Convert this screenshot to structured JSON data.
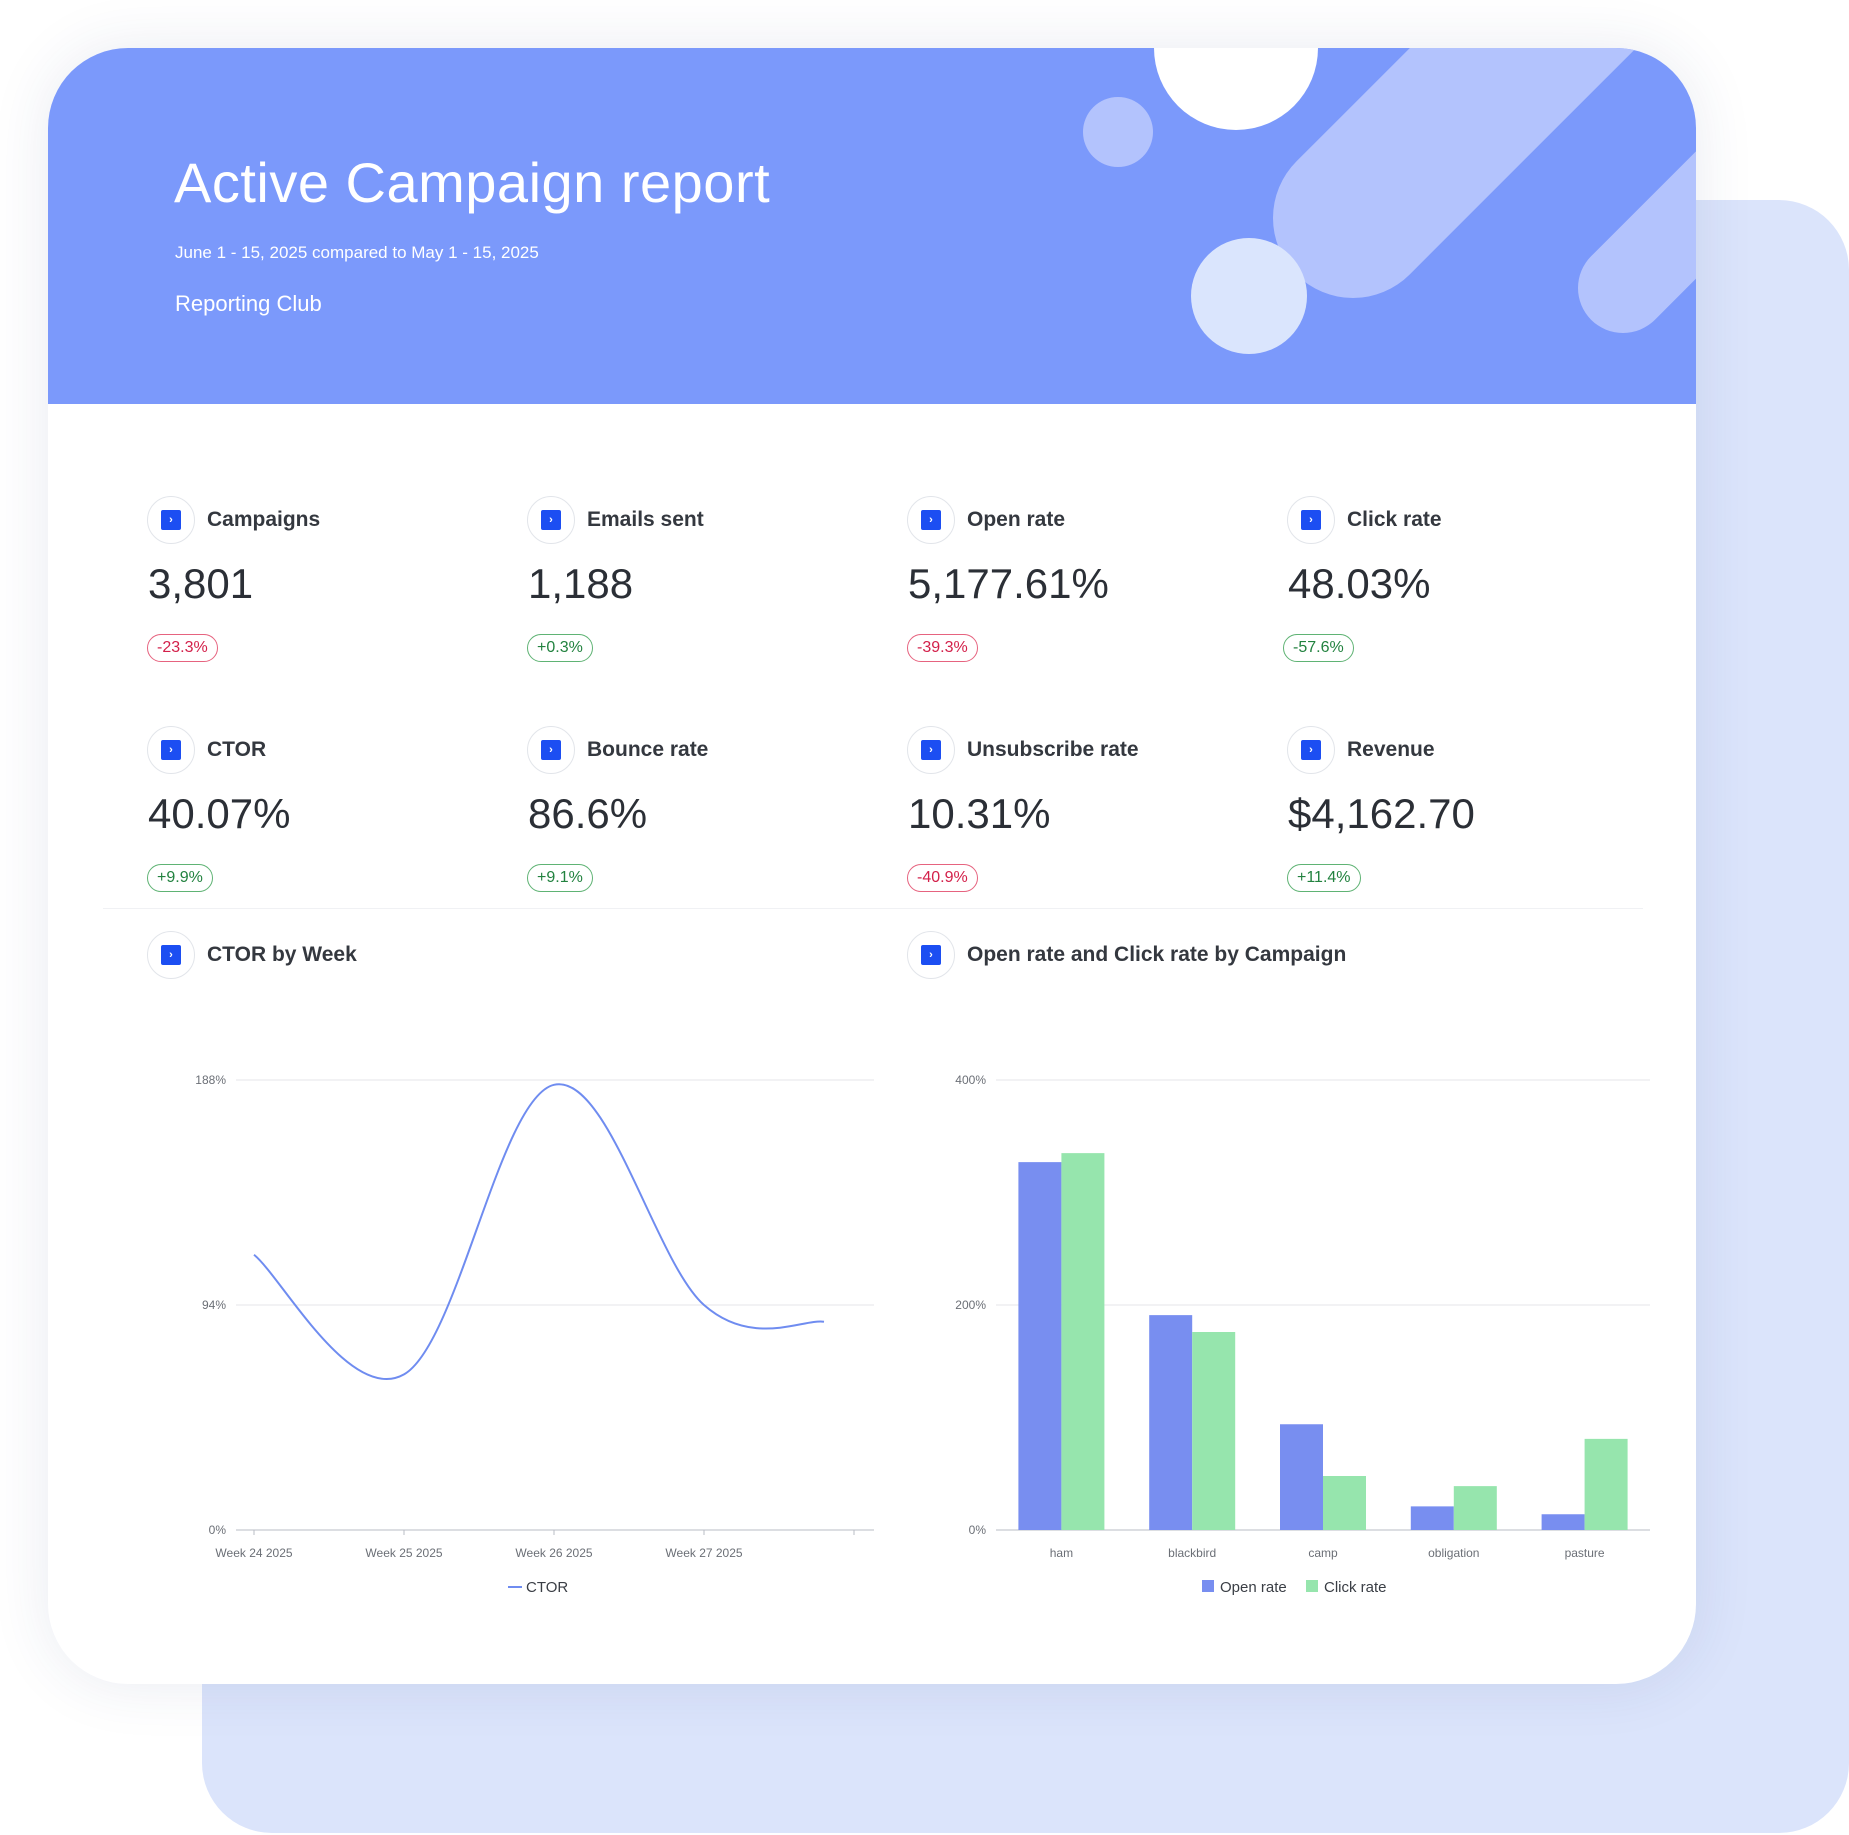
{
  "header": {
    "title": "Active Campaign report",
    "date_range": "June 1 - 15, 2025 compared to May 1 - 15, 2025",
    "organization": "Reporting Club",
    "colors": {
      "banner": "#7b99fb",
      "back_card": "#dbe4fb"
    }
  },
  "kpis": [
    {
      "label": "Campaigns",
      "value": "3,801",
      "change": "-23.3%",
      "trend": "negative"
    },
    {
      "label": "Emails sent",
      "value": "1,188",
      "change": "+0.3%",
      "trend": "positive"
    },
    {
      "label": "Open rate",
      "value": "5,177.61%",
      "change": "-39.3%",
      "trend": "negative"
    },
    {
      "label": "Click rate",
      "value": "48.03%",
      "change": "-57.6%",
      "trend": "positive"
    },
    {
      "label": "CTOR",
      "value": "40.07%",
      "change": "+9.9%",
      "trend": "positive"
    },
    {
      "label": "Bounce rate",
      "value": "86.6%",
      "change": "+9.1%",
      "trend": "positive"
    },
    {
      "label": "Unsubscribe rate",
      "value": "10.31%",
      "change": "-40.9%",
      "trend": "negative"
    },
    {
      "label": "Revenue",
      "value": "$4,162.70",
      "change": "+11.4%",
      "trend": "positive"
    }
  ],
  "source_icon": "activecampaign-icon",
  "chart_data": [
    {
      "type": "line",
      "title": "CTOR by Week",
      "x": [
        "Week 24 2025",
        "Week 25 2025",
        "Week 26 2025",
        "Week 27 2025",
        ""
      ],
      "series": [
        {
          "name": "CTOR",
          "values": [
            115,
            65,
            186,
            94,
            87
          ],
          "color": "#6f8cf0"
        }
      ],
      "yticks": [
        "0%",
        "94%",
        "188%"
      ],
      "ylim": [
        0,
        188
      ],
      "grid": true,
      "legend": "bottom"
    },
    {
      "type": "bar",
      "title": "Open rate and Click rate by Campaign",
      "categories": [
        "ham",
        "blackbird",
        "camp",
        "obligation",
        "pasture"
      ],
      "series": [
        {
          "name": "Open rate",
          "values": [
            327,
            191,
            94,
            21,
            14
          ],
          "color": "#788ef0"
        },
        {
          "name": "Click rate",
          "values": [
            335,
            176,
            48,
            39,
            81
          ],
          "color": "#96e5ad"
        }
      ],
      "yticks": [
        "0%",
        "200%",
        "400%"
      ],
      "ylim": [
        0,
        400
      ],
      "grid": true,
      "legend": "bottom"
    }
  ]
}
